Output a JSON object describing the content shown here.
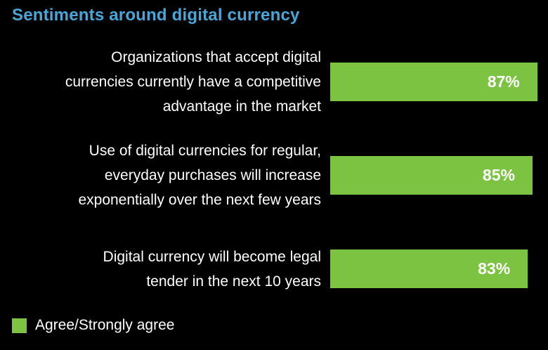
{
  "chart_data": {
    "type": "bar",
    "orientation": "horizontal",
    "title": "Sentiments around digital currency",
    "categories": [
      "Organizations that accept digital\ncurrencies currently have a competitive\nadvantage in the market",
      "Use of digital currencies for regular,\neveryday purchases will increase\nexponentially over the next few years",
      "Digital currency will become legal\ntender in the next 10 years"
    ],
    "values": [
      87,
      85,
      83
    ],
    "value_labels": [
      "87%",
      "85%",
      "83%"
    ],
    "xlim": [
      0,
      91.5
    ],
    "grid": false,
    "legend_position": "bottom-left",
    "legend_entries": [
      "Agree/Strongly agree"
    ],
    "colors": {
      "bar": "#7cc342",
      "title": "#48a7d8",
      "label_text": "#ffffff",
      "value_text": "#ffffff",
      "background": "#000000"
    }
  }
}
